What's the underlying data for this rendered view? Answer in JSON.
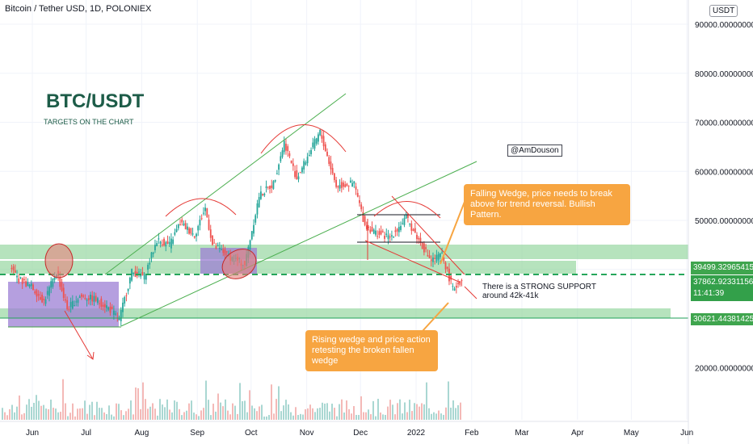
{
  "header": {
    "title": "Bitcoin / Tether USD, 1D, POLONIEX",
    "currency": "USDT"
  },
  "annotations": {
    "big_title": "BTC/USDT",
    "subtitle": "TARGETS ON THE CHART",
    "author": "@AmDouson",
    "callout_wedge": "Falling Wedge, price needs to break\nabove for trend reversal. Bullish Pattern.",
    "callout_rising": "Rising wedge and price action\nretesting the broken fallen wedge",
    "support_line1": "There is a STRONG SUPPORT",
    "support_line2": "around 42k-41k"
  },
  "price_tags": {
    "p1": "39499.32965415",
    "p2": "37862.92331156",
    "timer": "11:41:39",
    "p3": "30621.44381425"
  },
  "colors": {
    "up": "#26a69a",
    "down": "#ef5350",
    "zone": "#8fd49a",
    "purple": "#9c7fd4",
    "callout": "#f7a541",
    "trend": "#4caf50"
  },
  "chart_data": {
    "type": "line",
    "y_axis": {
      "min": 15000,
      "max": 90000,
      "ticks": [
        "90000.00000000",
        "80000.00000000",
        "70000.00000000",
        "60000.00000000",
        "50000.00000000",
        "20000.00000000"
      ]
    },
    "x_axis": {
      "labels": [
        "Jun",
        "Jul",
        "Aug",
        "Sep",
        "Oct",
        "Nov",
        "Dec",
        "2022",
        "Feb",
        "Mar",
        "Apr",
        "May",
        "Jun"
      ]
    },
    "series": [
      {
        "values": [
          [
            "2021-05-20",
            40500
          ],
          [
            "2021-05-25",
            38000
          ],
          [
            "2021-06-01",
            36500
          ],
          [
            "2021-06-08",
            33500
          ],
          [
            "2021-06-15",
            39500
          ],
          [
            "2021-06-21",
            32000
          ],
          [
            "2021-06-28",
            34500
          ],
          [
            "2021-07-06",
            34000
          ],
          [
            "2021-07-13",
            32500
          ],
          [
            "2021-07-20",
            29800
          ],
          [
            "2021-07-27",
            39500
          ],
          [
            "2021-08-03",
            38500
          ],
          [
            "2021-08-10",
            46000
          ],
          [
            "2021-08-17",
            45000
          ],
          [
            "2021-08-23",
            49500
          ],
          [
            "2021-08-31",
            47000
          ],
          [
            "2021-09-06",
            52500
          ],
          [
            "2021-09-10",
            45000
          ],
          [
            "2021-09-20",
            42500
          ],
          [
            "2021-09-28",
            41000
          ],
          [
            "2021-10-06",
            55000
          ],
          [
            "2021-10-14",
            57500
          ],
          [
            "2021-10-20",
            66000
          ],
          [
            "2021-10-27",
            58500
          ],
          [
            "2021-11-02",
            63000
          ],
          [
            "2021-11-09",
            68000
          ],
          [
            "2021-11-18",
            57000
          ],
          [
            "2021-11-28",
            57500
          ],
          [
            "2021-12-04",
            49000
          ],
          [
            "2021-12-10",
            47500
          ],
          [
            "2021-12-18",
            46500
          ],
          [
            "2021-12-27",
            50500
          ],
          [
            "2022-01-03",
            46000
          ],
          [
            "2022-01-10",
            41800
          ],
          [
            "2022-01-16",
            43000
          ],
          [
            "2022-01-22",
            36000
          ],
          [
            "2022-01-27",
            37862
          ]
        ]
      }
    ],
    "levels": [
      39499.32965415,
      37862.92331156,
      30621.44381425
    ]
  }
}
